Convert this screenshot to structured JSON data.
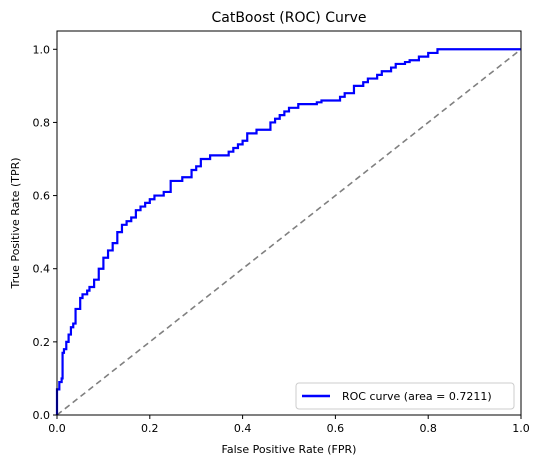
{
  "chart_data": {
    "type": "line",
    "title": "CatBoost (ROC) Curve",
    "xlabel": "False Positive Rate (FPR)",
    "ylabel": "True Positive Rate (TPR)",
    "xlim": [
      0.0,
      1.0
    ],
    "ylim": [
      0.0,
      1.05
    ],
    "xticks": [
      0.0,
      0.2,
      0.4,
      0.6,
      0.8,
      1.0
    ],
    "yticks": [
      0.0,
      0.2,
      0.4,
      0.6,
      0.8,
      1.0
    ],
    "xtick_labels": [
      "0.0",
      "0.2",
      "0.4",
      "0.6",
      "0.8",
      "1.0"
    ],
    "ytick_labels": [
      "0.0",
      "0.2",
      "0.4",
      "0.6",
      "0.8",
      "1.0"
    ],
    "legend_position": "lower-right",
    "grid": false,
    "series": [
      {
        "name": "ROC curve (area = 0.7211)",
        "color": "#0000ff",
        "style": "solid",
        "x": [
          0.0,
          0.0,
          0.005,
          0.01,
          0.012,
          0.015,
          0.02,
          0.025,
          0.03,
          0.035,
          0.04,
          0.05,
          0.055,
          0.06,
          0.065,
          0.07,
          0.08,
          0.09,
          0.1,
          0.11,
          0.12,
          0.13,
          0.14,
          0.15,
          0.16,
          0.17,
          0.18,
          0.19,
          0.2,
          0.21,
          0.22,
          0.23,
          0.245,
          0.26,
          0.27,
          0.29,
          0.3,
          0.31,
          0.33,
          0.34,
          0.35,
          0.37,
          0.38,
          0.39,
          0.4,
          0.41,
          0.43,
          0.44,
          0.46,
          0.47,
          0.48,
          0.49,
          0.5,
          0.52,
          0.54,
          0.56,
          0.57,
          0.6,
          0.61,
          0.62,
          0.64,
          0.66,
          0.67,
          0.69,
          0.7,
          0.72,
          0.73,
          0.75,
          0.76,
          0.78,
          0.8,
          0.82,
          0.85,
          0.86,
          0.88,
          0.9,
          0.92,
          0.94,
          0.96,
          0.98,
          1.0
        ],
        "y": [
          0.0,
          0.07,
          0.09,
          0.1,
          0.17,
          0.18,
          0.2,
          0.22,
          0.24,
          0.25,
          0.29,
          0.32,
          0.33,
          0.33,
          0.34,
          0.35,
          0.37,
          0.4,
          0.43,
          0.45,
          0.47,
          0.5,
          0.52,
          0.53,
          0.54,
          0.56,
          0.57,
          0.58,
          0.59,
          0.6,
          0.6,
          0.61,
          0.64,
          0.64,
          0.65,
          0.67,
          0.68,
          0.7,
          0.71,
          0.71,
          0.71,
          0.72,
          0.73,
          0.74,
          0.75,
          0.77,
          0.78,
          0.78,
          0.8,
          0.81,
          0.82,
          0.83,
          0.84,
          0.85,
          0.85,
          0.855,
          0.86,
          0.86,
          0.87,
          0.88,
          0.9,
          0.91,
          0.92,
          0.93,
          0.94,
          0.95,
          0.96,
          0.965,
          0.97,
          0.98,
          0.99,
          1.0,
          1.0,
          1.0,
          1.0,
          1.0,
          1.0,
          1.0,
          1.0,
          1.0,
          1.0
        ]
      },
      {
        "name": "",
        "color": "#808080",
        "style": "dashed",
        "x": [
          0.0,
          1.0
        ],
        "y": [
          0.0,
          1.0
        ]
      }
    ]
  }
}
